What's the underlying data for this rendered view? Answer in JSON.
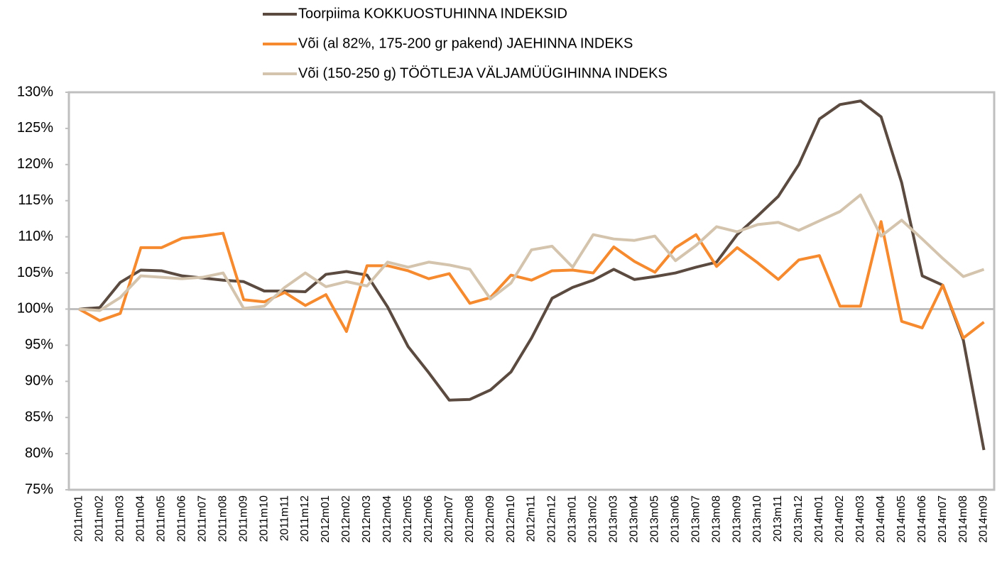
{
  "chart_data": {
    "type": "line",
    "categories": [
      "2011m01",
      "2011m02",
      "2011m03",
      "2011m04",
      "2011m05",
      "2011m06",
      "2011m07",
      "2011m08",
      "2011m09",
      "2011m10",
      "2011m11",
      "2011m12",
      "2012m01",
      "2012m02",
      "2012m03",
      "2012m04",
      "2012m05",
      "2012m06",
      "2012m07",
      "2012m08",
      "2012m09",
      "2012m10",
      "2012m11",
      "2012m12",
      "2013m01",
      "2013m02",
      "2013m03",
      "2013m04",
      "2013m05",
      "2013m06",
      "2013m07",
      "2013m08",
      "2013m09",
      "2013m10",
      "2013m11",
      "2013m12",
      "2014m01",
      "2014m02",
      "2014m03",
      "2014m04",
      "2014m05",
      "2014m06",
      "2014m07",
      "2014m08",
      "2014m09"
    ],
    "series": [
      {
        "name": "Toorpiima KOKKUOSTUHINNA INDEKSID",
        "color": "#5a4a3f",
        "values": [
          100,
          100.2,
          103.7,
          105.4,
          105.3,
          104.6,
          104.3,
          104.0,
          103.8,
          102.5,
          102.5,
          102.4,
          104.8,
          105.2,
          104.7,
          100.3,
          94.8,
          91.2,
          87.4,
          87.5,
          88.8,
          91.3,
          96.0,
          101.5,
          103.0,
          104.0,
          105.5,
          104.1,
          104.5,
          105.0,
          105.8,
          106.5,
          110.3,
          112.9,
          115.6,
          120.0,
          126.3,
          128.3,
          128.8,
          126.6,
          117.5,
          104.6,
          103.3,
          95.7,
          80.5
        ]
      },
      {
        "name": "Või (al 82%, 175-200 gr pakend) JAEHINNA INDEKS",
        "color": "#f58a2e",
        "values": [
          100,
          98.4,
          99.4,
          108.5,
          108.5,
          109.8,
          110.1,
          110.5,
          101.3,
          101.0,
          102.3,
          100.5,
          102.0,
          96.9,
          106.0,
          106.0,
          105.3,
          104.2,
          104.9,
          100.8,
          101.6,
          104.7,
          104.0,
          105.3,
          105.4,
          105.0,
          108.6,
          106.6,
          105.1,
          108.5,
          110.3,
          105.9,
          108.5,
          106.4,
          104.1,
          106.8,
          107.4,
          100.4,
          100.4,
          112.1,
          98.3,
          97.4,
          103.3,
          96.0,
          98.2
        ]
      },
      {
        "name": "Või (150-250 g) TÖÖTLEJA VÄLJAMÜÜGIHINNA INDEKS",
        "color": "#d4c4ad",
        "values": [
          100,
          99.8,
          101.6,
          104.6,
          104.4,
          104.2,
          104.4,
          105.0,
          100.1,
          100.4,
          103.0,
          105.0,
          103.1,
          103.8,
          103.2,
          106.5,
          105.8,
          106.5,
          106.1,
          105.5,
          101.4,
          103.6,
          108.2,
          108.7,
          105.8,
          110.3,
          109.7,
          109.5,
          110.1,
          106.7,
          108.8,
          111.4,
          110.7,
          111.7,
          112.0,
          110.9,
          112.2,
          113.5,
          115.8,
          110.1,
          112.3,
          109.7,
          107.0,
          104.5,
          105.5
        ]
      }
    ],
    "ylim": [
      75,
      130
    ],
    "yticks": [
      {
        "value": 75,
        "label": "75%"
      },
      {
        "value": 80,
        "label": "80%"
      },
      {
        "value": 85,
        "label": "85%"
      },
      {
        "value": 90,
        "label": "90%"
      },
      {
        "value": 95,
        "label": "95%"
      },
      {
        "value": 100,
        "label": "100%"
      },
      {
        "value": 105,
        "label": "105%"
      },
      {
        "value": 110,
        "label": "110%"
      },
      {
        "value": 115,
        "label": "115%"
      },
      {
        "value": 120,
        "label": "120%"
      },
      {
        "value": 125,
        "label": "125%"
      },
      {
        "value": 130,
        "label": "130%"
      }
    ],
    "x_axis_crosses": 100,
    "legend": "top"
  }
}
